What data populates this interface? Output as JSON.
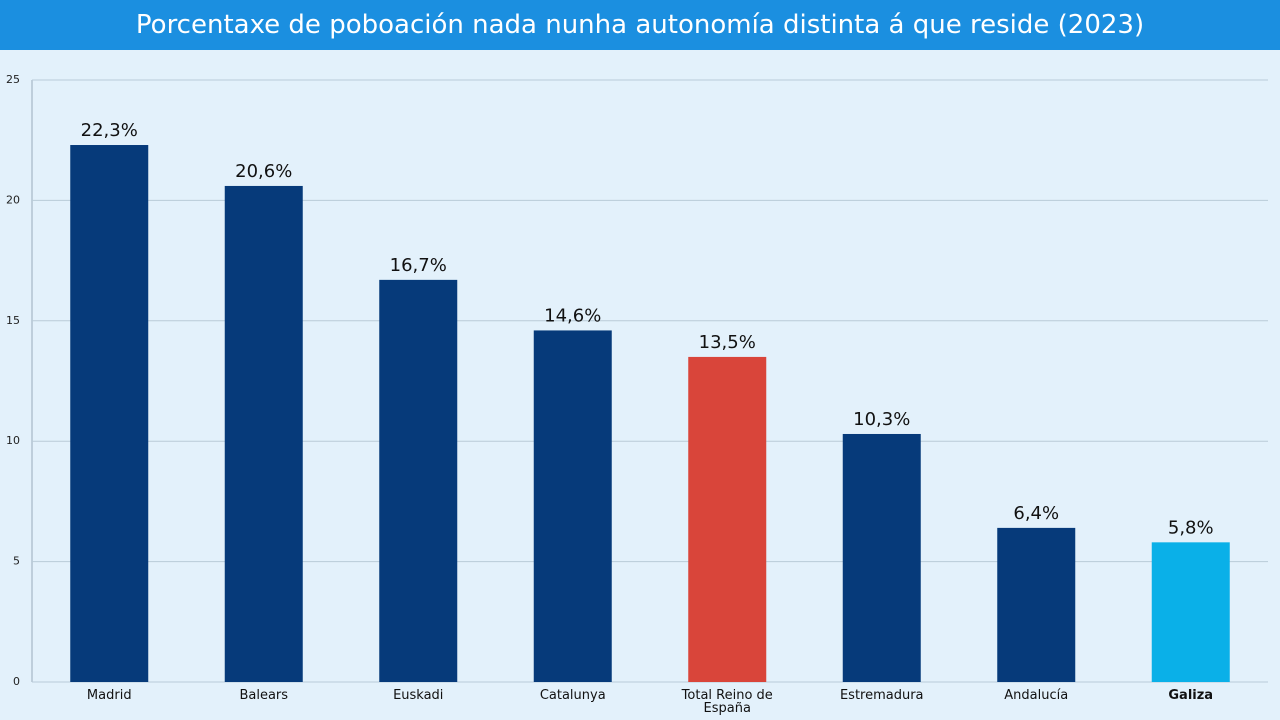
{
  "chart_data": {
    "type": "bar",
    "title": "Porcentaxe de poboación nada nunha autonomía distinta á que reside (2023)",
    "categories": [
      "Madrid",
      "Balears",
      "Euskadi",
      "Catalunya",
      "Total Reino de España",
      "Estremadura",
      "Andalucía",
      "Galiza"
    ],
    "values": [
      22.3,
      20.6,
      16.7,
      14.6,
      13.5,
      10.3,
      6.4,
      5.8
    ],
    "value_labels": [
      "22,3%",
      "20,6%",
      "16,7%",
      "14,6%",
      "13,5%",
      "10,3%",
      "6,4%",
      "5,8%"
    ],
    "colors": [
      "#063a7a",
      "#063a7a",
      "#063a7a",
      "#063a7a",
      "#d9453a",
      "#063a7a",
      "#063a7a",
      "#0ab0e8"
    ],
    "ylim": [
      0,
      25
    ],
    "yticks": [
      0,
      5,
      10,
      15,
      20,
      25
    ],
    "grid": true
  }
}
